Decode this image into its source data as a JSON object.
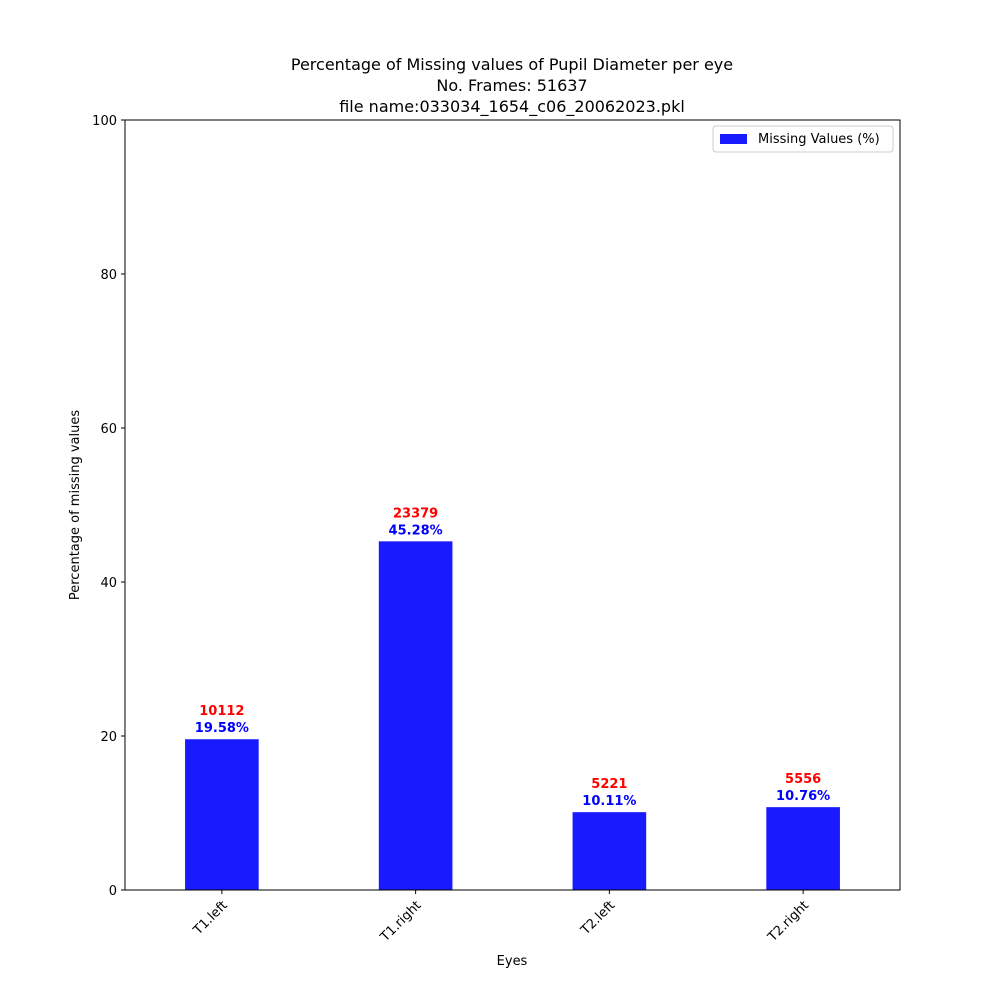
{
  "chart_data": {
    "type": "bar",
    "title_lines": [
      "Percentage of Missing values of Pupil Diameter per eye",
      "No. Frames: 51637",
      "file name:033034_1654_c06_20062023.pkl"
    ],
    "xlabel": "Eyes",
    "ylabel": "Percentage of missing values",
    "categories": [
      "T1.left",
      "T1.right",
      "T2.left",
      "T2.right"
    ],
    "series": [
      {
        "name": "Missing Values (%)",
        "values": [
          19.58,
          45.28,
          10.11,
          10.76
        ],
        "counts": [
          10112,
          23379,
          5221,
          5556
        ],
        "color": "#1a1aff"
      }
    ],
    "value_labels": [
      "19.58%",
      "45.28%",
      "10.11%",
      "10.76%"
    ],
    "count_labels": [
      "10112",
      "23379",
      "5221",
      "5556"
    ],
    "count_label_color": "#ff0000",
    "value_label_color": "#0000ff",
    "ylim": [
      0,
      100
    ],
    "yticks": [
      "0",
      "20",
      "40",
      "60",
      "80",
      "100"
    ],
    "grid": false,
    "legend_position": "top-right"
  }
}
